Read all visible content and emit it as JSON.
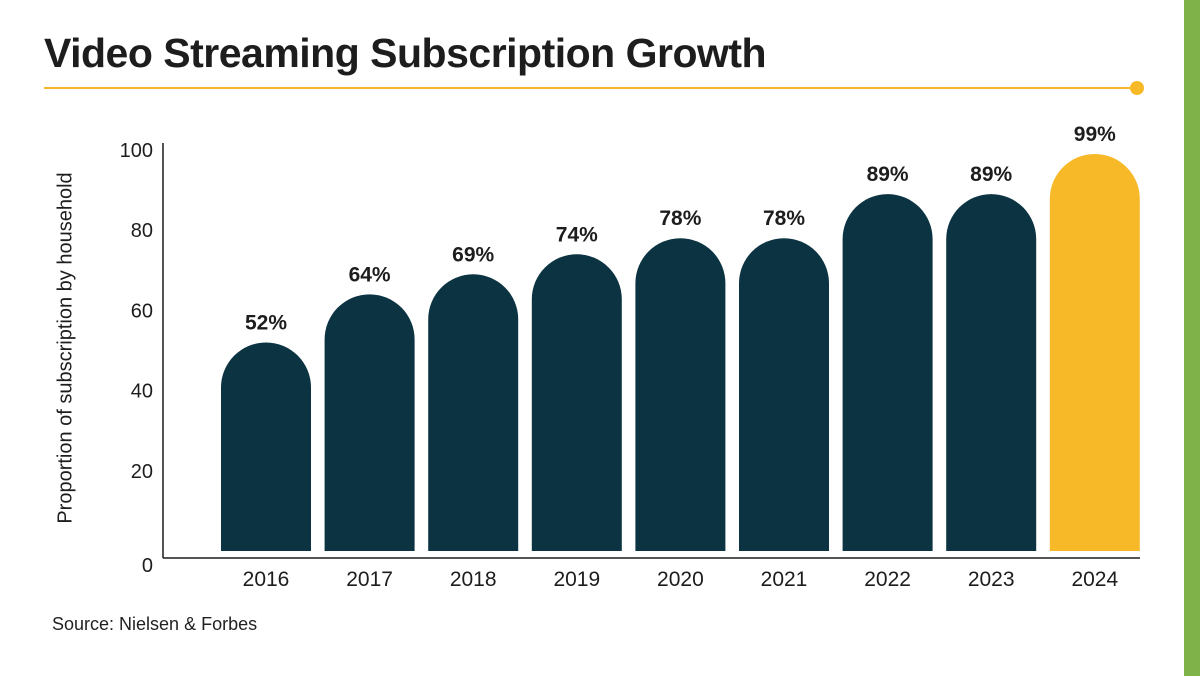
{
  "title": "Video Streaming Subscription Growth",
  "source": "Source: Nielsen & Forbes",
  "colors": {
    "bar": "#0b3341",
    "highlight": "#f7b928",
    "accent_rule": "#f7b928",
    "side_band": "#7fb34a",
    "text": "#1d1d1d"
  },
  "chart_data": {
    "type": "bar",
    "categories": [
      "2016",
      "2017",
      "2018",
      "2019",
      "2020",
      "2021",
      "2022",
      "2023",
      "2024"
    ],
    "values": [
      52,
      64,
      69,
      74,
      78,
      78,
      89,
      89,
      99
    ],
    "data_labels": [
      "52%",
      "64%",
      "69%",
      "74%",
      "78%",
      "78%",
      "89%",
      "89%",
      "99%"
    ],
    "highlight_category": "2024",
    "title": "Video Streaming Subscription Growth",
    "xlabel": "",
    "ylabel": "Proportion of subscription by household",
    "ylim": [
      0,
      100
    ],
    "yticks": [
      0,
      20,
      40,
      60,
      80,
      100
    ],
    "grid": false
  }
}
